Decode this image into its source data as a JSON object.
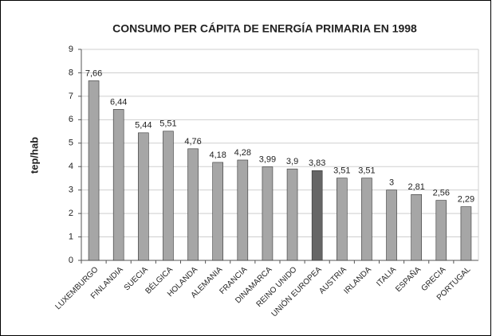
{
  "chart_data": {
    "type": "bar",
    "title": "CONSUMO PER CÁPITA DE ENERGÍA PRIMARIA EN 1998",
    "y_label": "tep/hab",
    "categories": [
      "LUXEMBURGO",
      "FINLANDIA",
      "SUECIA",
      "BÉLGICA",
      "HOLANDA",
      "ALEMANIA",
      "FRANCIA",
      "DINAMARCA",
      "REINO UNIDO",
      "UNIÓN EUROPEA",
      "AUSTRIA",
      "IRLANDA",
      "ITALIA",
      "ESPAÑA",
      "GRECIA",
      "PORTUGAL"
    ],
    "values": [
      7.66,
      6.44,
      5.44,
      5.51,
      4.76,
      4.18,
      4.28,
      3.99,
      3.9,
      3.83,
      3.51,
      3.51,
      3,
      2.81,
      2.56,
      2.29
    ],
    "value_labels": [
      "7,66",
      "6,44",
      "5,44",
      "5,51",
      "4,76",
      "4,18",
      "4,28",
      "3,99",
      "3,9",
      "3,83",
      "3,51",
      "3,51",
      "3",
      "2,81",
      "2,56",
      "2,29"
    ],
    "colors": [
      "#a6a6a6",
      "#a6a6a6",
      "#a6a6a6",
      "#a6a6a6",
      "#a6a6a6",
      "#a6a6a6",
      "#a6a6a6",
      "#a6a6a6",
      "#a6a6a6",
      "#666666",
      "#a6a6a6",
      "#a6a6a6",
      "#a6a6a6",
      "#a6a6a6",
      "#a6a6a6",
      "#a6a6a6"
    ],
    "ylim": [
      0,
      9
    ],
    "yticks": [
      0,
      1,
      2,
      3,
      4,
      5,
      6,
      7,
      8,
      9
    ],
    "grid": true
  }
}
